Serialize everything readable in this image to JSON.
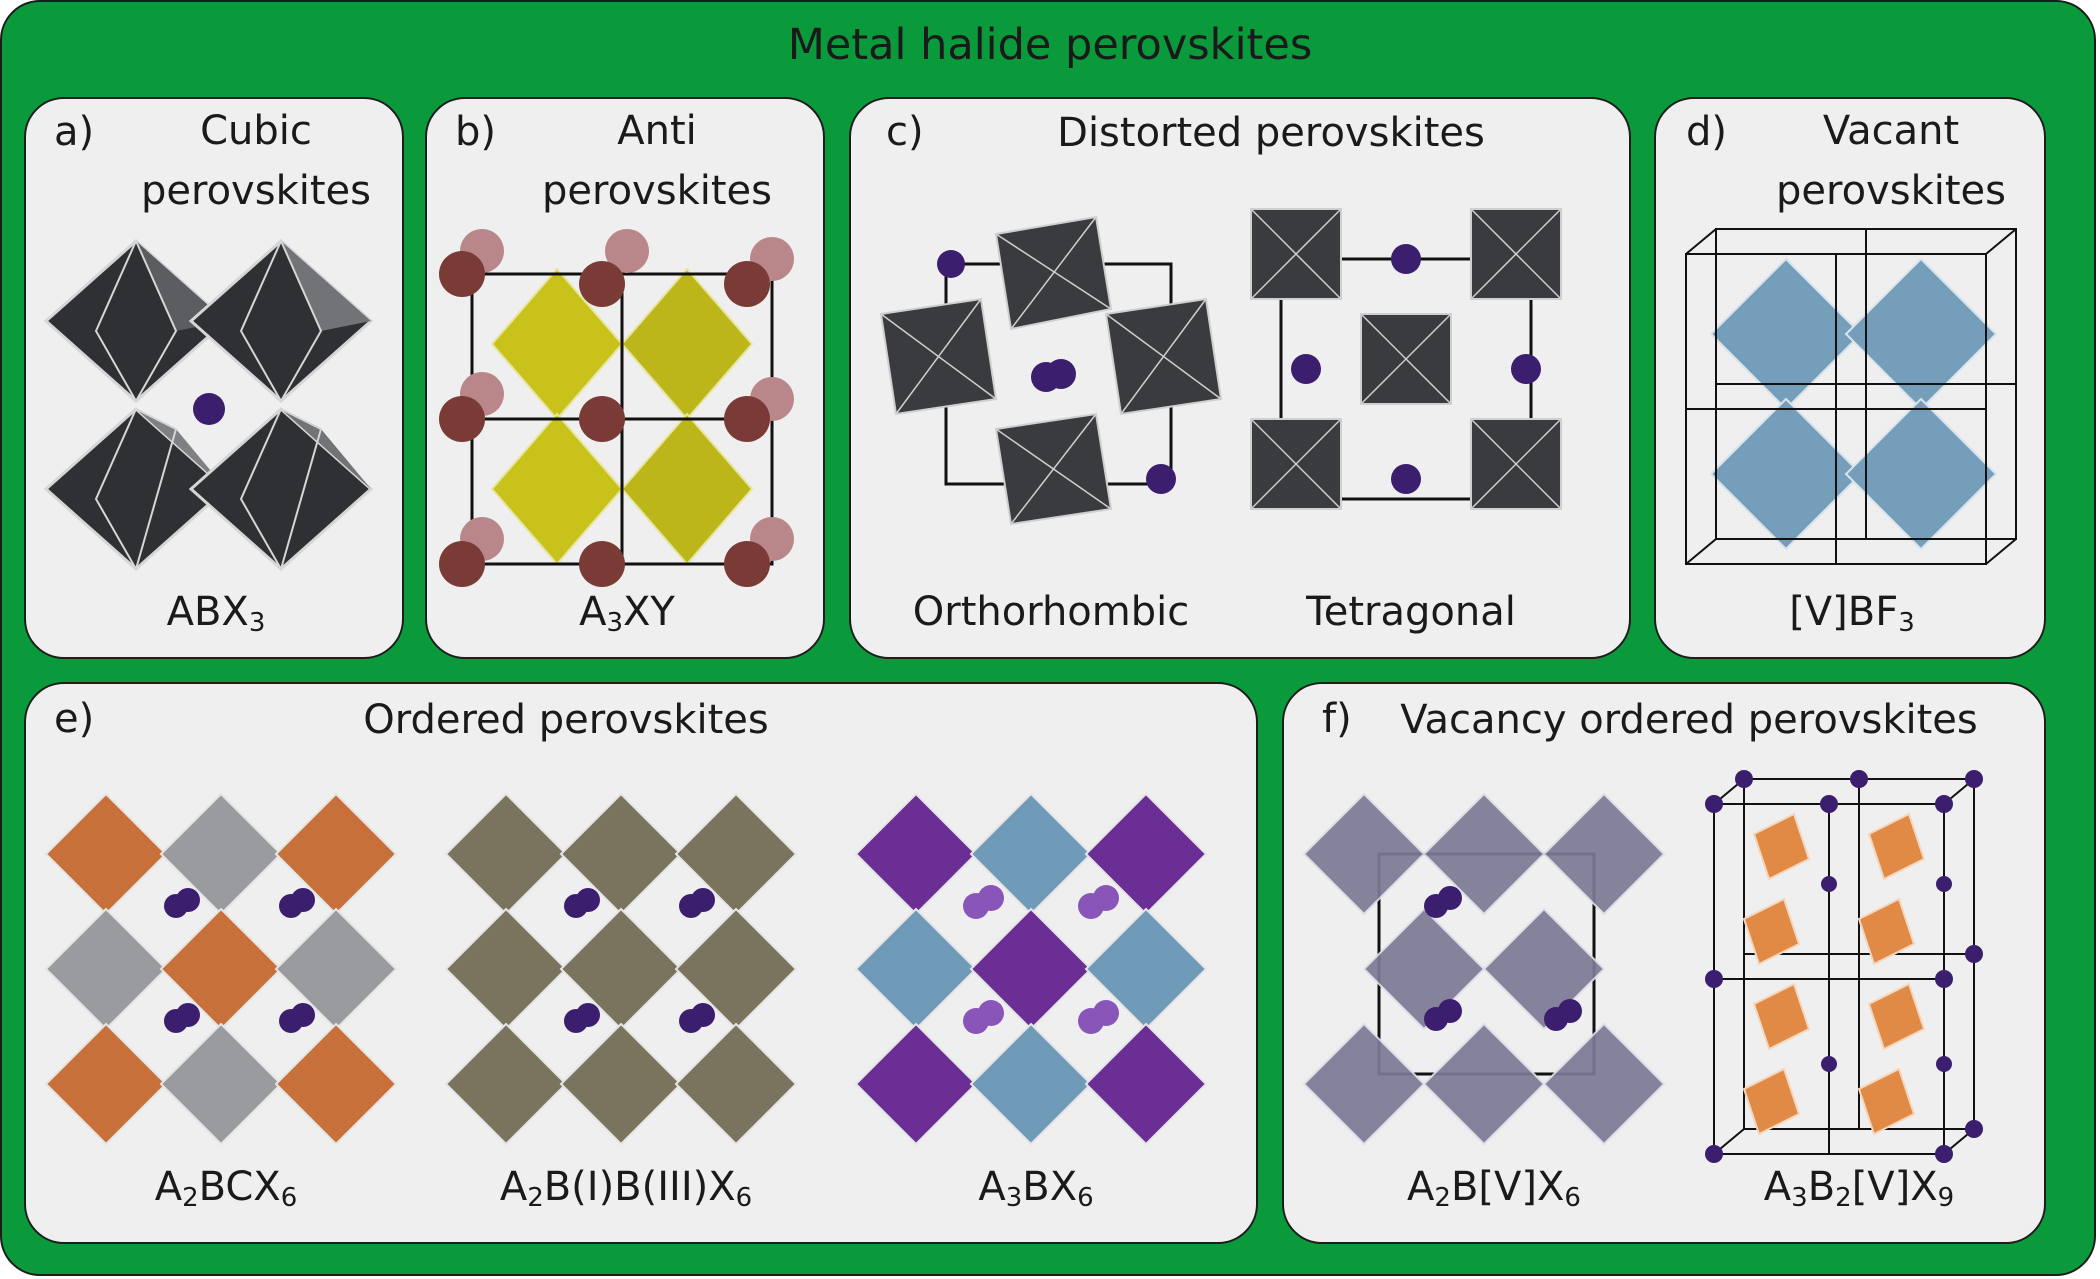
{
  "title": "Metal halide perovskites",
  "panels": {
    "a": {
      "label": "a)",
      "title_line1": "Cubic",
      "title_line2": "perovskites",
      "formula": [
        {
          "t": "ABX"
        },
        {
          "s": "3"
        }
      ]
    },
    "b": {
      "label": "b)",
      "title_line1": "Anti",
      "title_line2": "perovskites",
      "formula": [
        {
          "t": "A"
        },
        {
          "s": "3"
        },
        {
          "t": "XY"
        }
      ]
    },
    "c": {
      "label": "c)",
      "title": "Distorted perovskites",
      "sublabel_1": "Orthorhombic",
      "sublabel_2": "Tetragonal"
    },
    "d": {
      "label": "d)",
      "title_line1": "Vacant",
      "title_line2": "perovskites",
      "formula": [
        {
          "t": "[V]BF"
        },
        {
          "s": "3"
        }
      ]
    },
    "e": {
      "label": "e)",
      "title": "Ordered perovskites",
      "formula_1": [
        {
          "t": "A"
        },
        {
          "s": "2"
        },
        {
          "t": "BCX"
        },
        {
          "s": "6"
        }
      ],
      "formula_2": [
        {
          "t": "A"
        },
        {
          "s": "2"
        },
        {
          "t": "B(I)B(III)X"
        },
        {
          "s": "6"
        }
      ],
      "formula_3": [
        {
          "t": "A"
        },
        {
          "s": "3"
        },
        {
          "t": "BX"
        },
        {
          "s": "6"
        }
      ]
    },
    "f": {
      "label": "f)",
      "title": "Vacancy ordered perovskites",
      "formula_1": [
        {
          "t": "A"
        },
        {
          "s": "2"
        },
        {
          "t": "B[V]X"
        },
        {
          "s": "6"
        }
      ],
      "formula_2": [
        {
          "t": "A"
        },
        {
          "s": "3"
        },
        {
          "t": "B"
        },
        {
          "s": "2"
        },
        {
          "t": "[V]X"
        },
        {
          "s": "9"
        }
      ]
    }
  },
  "colors": {
    "frame": "#0a9a3c",
    "panel": "#efefef",
    "octahedron_dark": "#3a3b3e",
    "octahedron_grey": "#9a9b9e",
    "octahedron_yellow": "#c9c21a",
    "octahedron_blue": "#6f9ab8",
    "octahedron_orange": "#c8703a",
    "octahedron_olive": "#7a745e",
    "octahedron_purple": "#6b2e94",
    "octahedron_lavender": "#7d7a96",
    "octahedron_orange_light": "#e08a45",
    "atom_A": "#3b1f6e",
    "atom_anti": "#7a3b36"
  }
}
